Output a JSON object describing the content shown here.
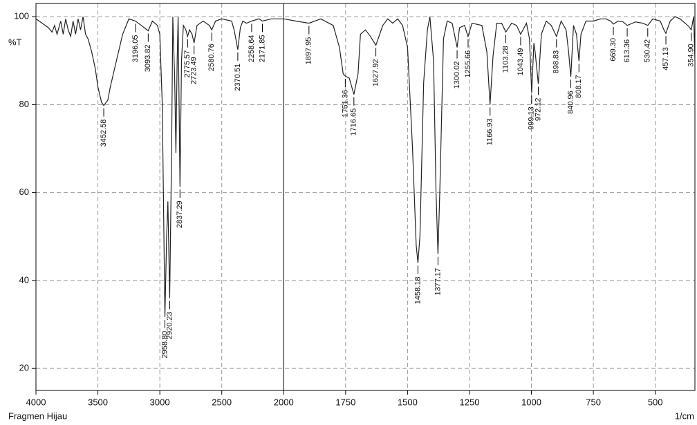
{
  "chart_data": {
    "type": "line",
    "title": "Fragmen Hijau",
    "x_label": "1/cm",
    "y_label": "%T",
    "xlim": [
      4000,
      340
    ],
    "ylim": [
      15,
      103
    ],
    "x_scale_break": 2000,
    "xticks": [
      4000,
      3500,
      3000,
      2500,
      2000,
      1750,
      1500,
      1250,
      1000,
      750,
      500
    ],
    "yticks": [
      20,
      40,
      60,
      80,
      100
    ],
    "grid": true,
    "color": "#222222",
    "x": [
      4000,
      3950,
      3900,
      3870,
      3850,
      3830,
      3800,
      3780,
      3760,
      3740,
      3720,
      3700,
      3680,
      3660,
      3640,
      3620,
      3600,
      3580,
      3550,
      3520,
      3500,
      3470,
      3452.58,
      3420,
      3400,
      3350,
      3300,
      3250,
      3196.05,
      3150,
      3093.82,
      3060,
      3020,
      3000,
      2980,
      2958.8,
      2945,
      2935,
      2920.23,
      2905,
      2895,
      2880,
      2870,
      2860,
      2852,
      2837.29,
      2825,
      2810,
      2790,
      2775.57,
      2760,
      2740,
      2723.49,
      2700,
      2650,
      2600,
      2580.76,
      2550,
      2500,
      2420,
      2400,
      2370.51,
      2350,
      2330,
      2300,
      2258.64,
      2200,
      2171.85,
      2100,
      2000,
      1950,
      1897.95,
      1850,
      1800,
      1775,
      1760,
      1751.36,
      1735,
      1716.65,
      1700,
      1690,
      1670,
      1650,
      1627.92,
      1600,
      1580,
      1560,
      1540,
      1520,
      1500,
      1480,
      1465,
      1458.18,
      1450,
      1435,
      1420,
      1410,
      1395,
      1385,
      1377.17,
      1370,
      1355,
      1340,
      1320,
      1300.02,
      1290,
      1270,
      1255.66,
      1240,
      1200,
      1180,
      1166.93,
      1155,
      1140,
      1120,
      1103.28,
      1080,
      1060,
      1043.49,
      1020,
      1008,
      999.13,
      990,
      985,
      972.12,
      960,
      940,
      920,
      898.83,
      880,
      860,
      850,
      840.96,
      830,
      818,
      808.17,
      800,
      780,
      750,
      720,
      700,
      680,
      669.3,
      650,
      630,
      613.36,
      580,
      550,
      530.42,
      510,
      480,
      465,
      457.13,
      440,
      420,
      400,
      380,
      365,
      354.9,
      345,
      340
    ],
    "values": [
      99.5,
      98.5,
      97.5,
      96.5,
      98,
      96,
      99,
      96,
      99.5,
      97,
      95.5,
      99,
      96,
      99.5,
      97,
      100,
      96,
      95,
      92,
      88,
      84,
      80.5,
      79.8,
      81,
      84,
      90,
      96,
      99.5,
      99,
      98,
      96.8,
      99,
      98,
      96,
      80,
      31.7,
      50,
      58,
      36,
      70,
      100,
      86,
      69,
      90,
      100,
      61.3,
      90,
      98,
      97,
      95.5,
      97,
      96,
      94,
      98,
      99,
      98,
      97,
      99,
      99.5,
      99,
      97,
      92.5,
      97.5,
      99,
      98.5,
      99,
      99.5,
      99,
      99.5,
      99.5,
      99,
      98.5,
      99.5,
      98,
      93,
      87,
      86.5,
      86,
      82.3,
      87,
      96,
      97,
      95.5,
      93.5,
      98,
      99.5,
      98.5,
      99.5,
      98,
      93,
      70,
      48,
      44,
      50,
      85,
      97,
      100,
      90,
      60,
      46,
      60,
      95,
      99,
      98.5,
      93,
      97.5,
      98,
      95.5,
      98.5,
      98,
      92,
      80,
      91,
      98.5,
      98.5,
      96.5,
      98.5,
      98,
      96,
      98.5,
      95,
      82.7,
      94,
      92,
      84.7,
      96,
      99,
      98,
      95.5,
      99,
      97,
      92,
      86.3,
      98,
      96,
      89.9,
      96,
      99,
      99,
      99.5,
      99.5,
      99,
      98.3,
      99,
      98.8,
      98,
      98.8,
      98.5,
      98,
      99.5,
      99,
      97,
      96.2,
      99,
      100,
      99.5,
      98.5,
      97.8,
      97,
      100,
      90
    ],
    "peaks": {
      "x": [
        3452.58,
        3196.05,
        3093.82,
        2958.8,
        2920.23,
        2837.29,
        2775.57,
        2723.49,
        2580.76,
        2370.51,
        2258.64,
        2171.85,
        1897.95,
        1751.36,
        1716.65,
        1627.92,
        1458.18,
        1377.17,
        1300.02,
        1255.66,
        1166.93,
        1103.28,
        1043.49,
        999.13,
        972.12,
        898.83,
        840.96,
        808.17,
        669.3,
        613.36,
        530.42,
        457.13,
        354.9
      ],
      "y": [
        79.8,
        99,
        96.8,
        31.7,
        36,
        61.3,
        95.5,
        94,
        97,
        92.5,
        99,
        99,
        98.5,
        86.5,
        82.3,
        93.5,
        44,
        46,
        93,
        95.5,
        80,
        96.5,
        96,
        82.7,
        84.7,
        95.5,
        86.3,
        89.9,
        98.3,
        98,
        98,
        96.2,
        97
      ],
      "labels": [
        "3452.58",
        "3196.05",
        "3093.82",
        "2958.80",
        "2920.23",
        "2837.29",
        "2775.57",
        "2723.49",
        "2580.76",
        "2370.51",
        "2258.64",
        "2171.85",
        "1897.95",
        "1751.36",
        "1716.65",
        "1627.92",
        "1458.18",
        "1377.17",
        "1300.02",
        "1255.66",
        "1166.93",
        "1103.28",
        "1043.49",
        "999.13",
        "972.12",
        "898.83",
        "840.96",
        "808.17",
        "669.30",
        "613.36",
        "530.42",
        "457.13",
        "354.90"
      ]
    }
  }
}
